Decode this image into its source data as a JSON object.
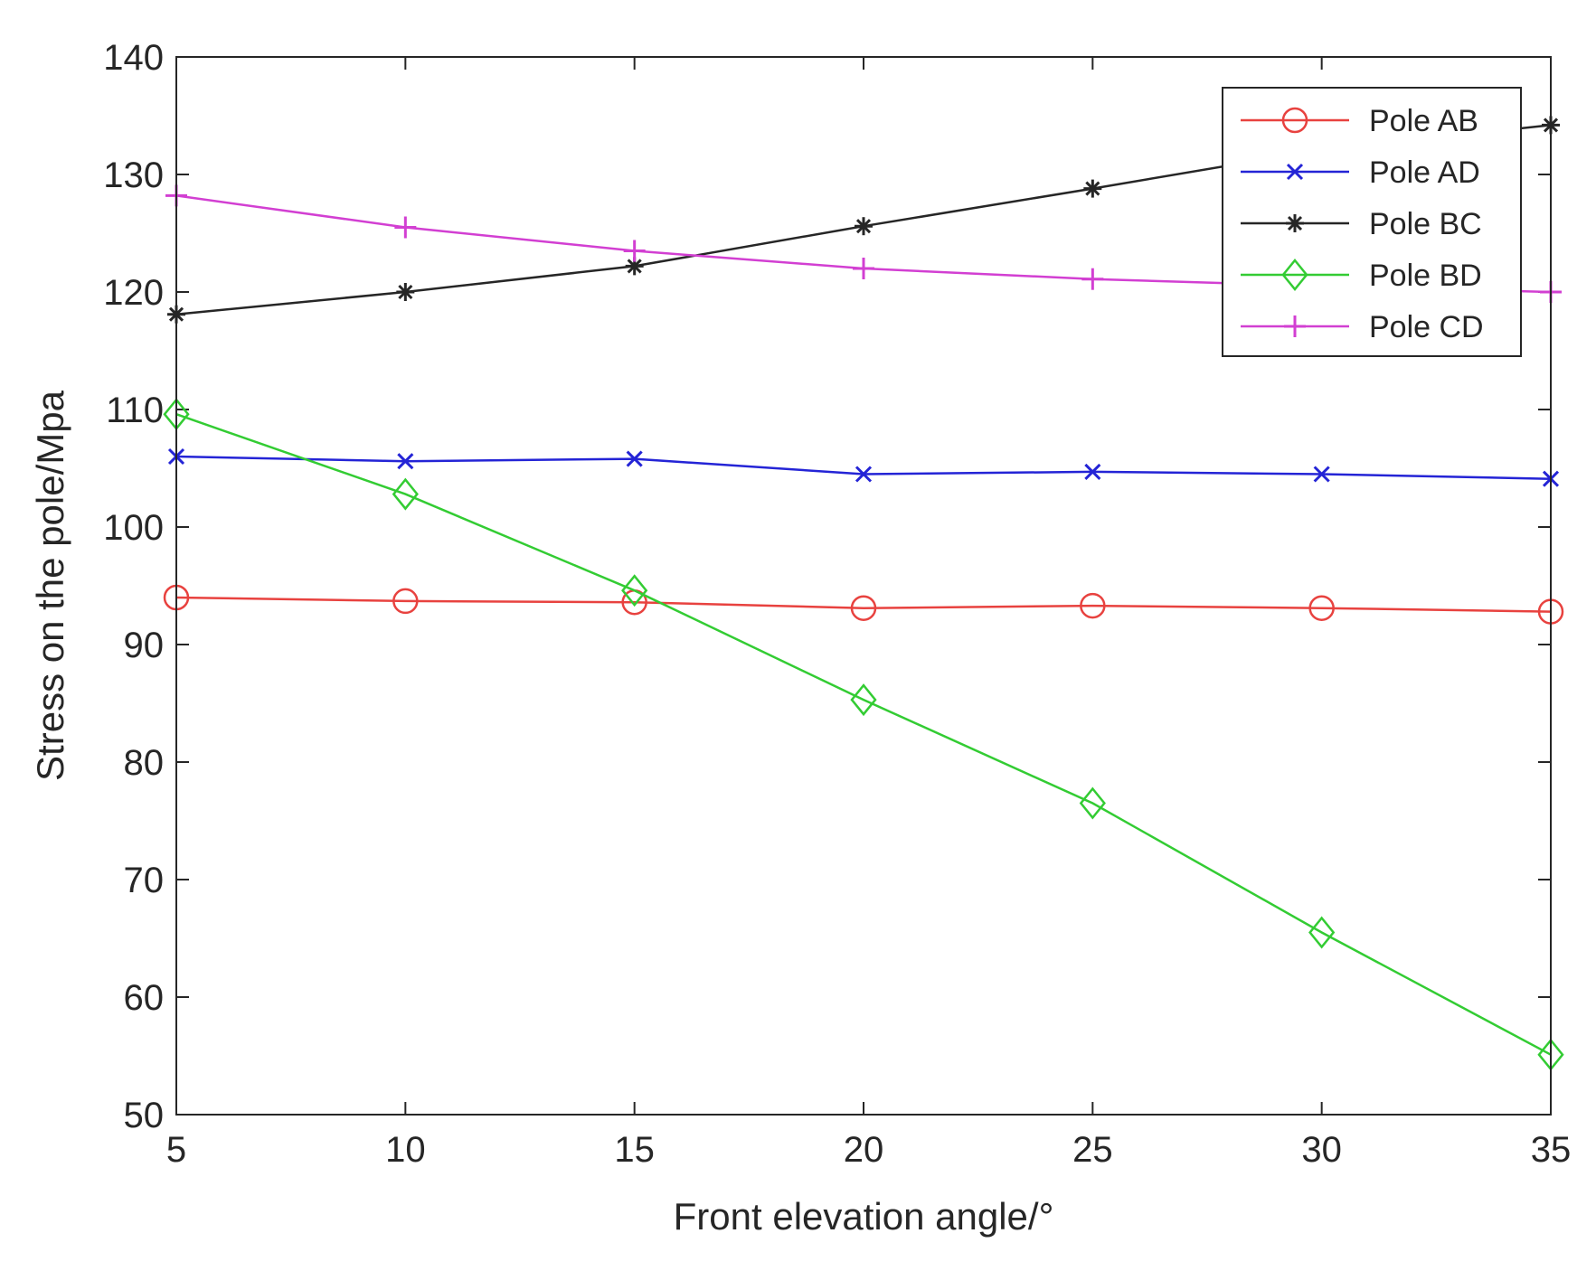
{
  "chart_data": {
    "type": "line",
    "title": "",
    "xlabel": "Front elevation angle/°",
    "ylabel": "Stress on the pole/Mpa",
    "x": [
      5,
      10,
      15,
      20,
      25,
      30,
      35
    ],
    "xlim": [
      5,
      35
    ],
    "ylim": [
      50,
      140
    ],
    "xticks": [
      5,
      10,
      15,
      20,
      25,
      30,
      35
    ],
    "yticks": [
      50,
      60,
      70,
      80,
      90,
      100,
      110,
      120,
      130,
      140
    ],
    "grid": false,
    "legend_position": "top-right",
    "series": [
      {
        "name": "Pole AB",
        "color": "#e8423f",
        "marker": "circle",
        "values": [
          94,
          93.7,
          93.6,
          93.1,
          93.3,
          93.1,
          92.8
        ]
      },
      {
        "name": "Pole AD",
        "color": "#2424d6",
        "marker": "x",
        "values": [
          106,
          105.6,
          105.8,
          104.5,
          104.7,
          104.5,
          104.1
        ]
      },
      {
        "name": "Pole BC",
        "color": "#262626",
        "marker": "star",
        "values": [
          118.1,
          120,
          122.2,
          125.6,
          128.8,
          132.1,
          134.2
        ]
      },
      {
        "name": "Pole BD",
        "color": "#33cc33",
        "marker": "diamond",
        "values": [
          109.6,
          102.8,
          94.6,
          85.3,
          76.5,
          65.5,
          55.1
        ]
      },
      {
        "name": "Pole CD",
        "color": "#d23fd2",
        "marker": "plus",
        "values": [
          128.2,
          125.5,
          123.5,
          122,
          121.1,
          120.5,
          120
        ]
      }
    ]
  }
}
